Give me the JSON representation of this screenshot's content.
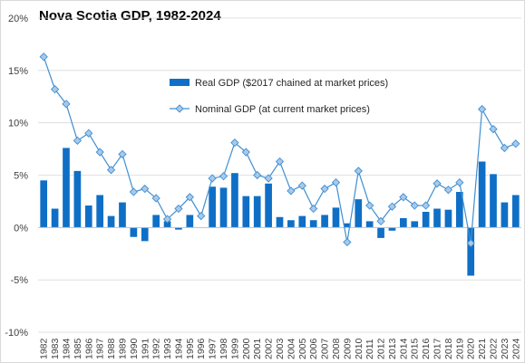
{
  "chart_data": {
    "type": "bar",
    "title": "Nova Scotia GDP, 1982-2024",
    "xlabel": "",
    "ylabel": "",
    "categories": [
      "1982",
      "1983",
      "1984",
      "1985",
      "1986",
      "1987",
      "1988",
      "1989",
      "1990",
      "1991",
      "1992",
      "1993",
      "1994",
      "1995",
      "1996",
      "1997",
      "1998",
      "1999",
      "2000",
      "2001",
      "2002",
      "2003",
      "2004",
      "2005",
      "2006",
      "2007",
      "2008",
      "2009",
      "2010",
      "2011",
      "2012",
      "2013",
      "2014",
      "2015",
      "2016",
      "2017",
      "2018",
      "2019",
      "2020",
      "2021",
      "2022",
      "2023",
      "2024"
    ],
    "series": [
      {
        "name": "Real GDP ($2017 chained at market prices)",
        "type": "bar",
        "color": "#0f6fc6",
        "values": [
          4.5,
          1.8,
          7.6,
          5.4,
          2.1,
          3.1,
          1.1,
          2.4,
          -0.9,
          -1.3,
          1.2,
          0.6,
          -0.2,
          1.2,
          0.0,
          3.9,
          3.8,
          5.2,
          3.0,
          3.0,
          4.2,
          1.0,
          0.7,
          1.1,
          0.7,
          1.2,
          1.9,
          0.4,
          2.7,
          0.6,
          -1.0,
          -0.3,
          0.9,
          0.6,
          1.5,
          1.8,
          1.7,
          3.4,
          -4.6,
          6.3,
          5.1,
          2.4,
          3.1
        ]
      },
      {
        "name": "Nominal GDP (at current market prices)",
        "type": "line",
        "marker": "diamond",
        "color": "#3f8fd2",
        "values": [
          16.3,
          13.2,
          11.8,
          8.3,
          9.0,
          7.2,
          5.5,
          7.0,
          3.4,
          3.7,
          2.8,
          0.8,
          1.8,
          2.9,
          1.1,
          4.7,
          4.9,
          8.1,
          7.2,
          5.0,
          4.7,
          6.3,
          3.5,
          4.0,
          1.8,
          3.7,
          4.3,
          -1.4,
          5.4,
          2.1,
          0.6,
          2.0,
          2.9,
          2.1,
          2.1,
          4.2,
          3.6,
          4.3,
          -1.5,
          11.3,
          9.4,
          7.6,
          8.0
        ]
      }
    ],
    "ylim": [
      -10,
      20
    ],
    "yticks": [
      -10,
      -5,
      0,
      5,
      10,
      15,
      20
    ],
    "ytick_labels": [
      "-10%",
      "-5%",
      "0%",
      "5%",
      "10%",
      "15%",
      "20%"
    ],
    "grid": true,
    "legend_position": "top-center"
  }
}
